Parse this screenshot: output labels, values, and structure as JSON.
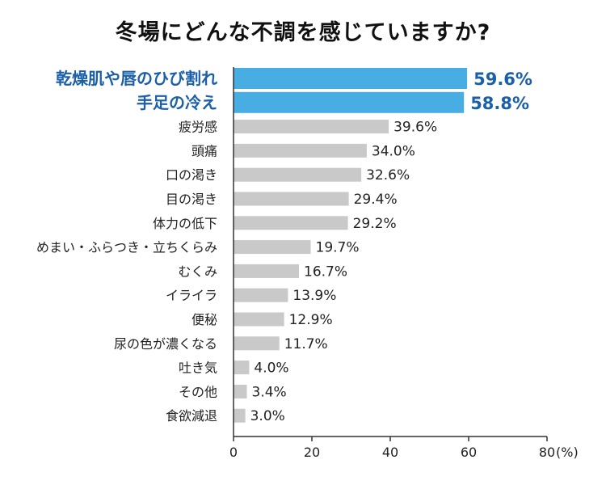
{
  "chart_data": {
    "type": "bar",
    "orientation": "horizontal",
    "title": "冬場にどんな不調を感じていますか?",
    "categories": [
      "乾燥肌や唇のひび割れ",
      "手足の冷え",
      "疲労感",
      "頭痛",
      "口の渇き",
      "目の渇き",
      "体力の低下",
      "めまい・ふらつき・立ちくらみ",
      "むくみ",
      "イライラ",
      "便秘",
      "尿の色が濃くなる",
      "吐き気",
      "その他",
      "食欲減退"
    ],
    "values": [
      59.6,
      58.8,
      39.6,
      34.0,
      32.6,
      29.4,
      29.2,
      19.7,
      16.7,
      13.9,
      12.9,
      11.7,
      4.0,
      3.4,
      3.0
    ],
    "value_labels": [
      "59.6%",
      "58.8%",
      "39.6%",
      "34.0%",
      "32.6%",
      "29.4%",
      "29.2%",
      "19.7%",
      "16.7%",
      "13.9%",
      "12.9%",
      "11.7%",
      "4.0%",
      "3.4%",
      "3.0%"
    ],
    "highlighted_count": 2,
    "xlim": [
      0,
      80
    ],
    "x_ticks": [
      "0",
      "20",
      "40",
      "60",
      "80"
    ],
    "x_unit": "(%)",
    "grid": false,
    "colors": {
      "highlight_bar": "#47ade3",
      "highlight_text": "#1a5fa8",
      "normal_bar": "#c9c9c9",
      "text": "#222222",
      "axis": "#333333"
    }
  }
}
